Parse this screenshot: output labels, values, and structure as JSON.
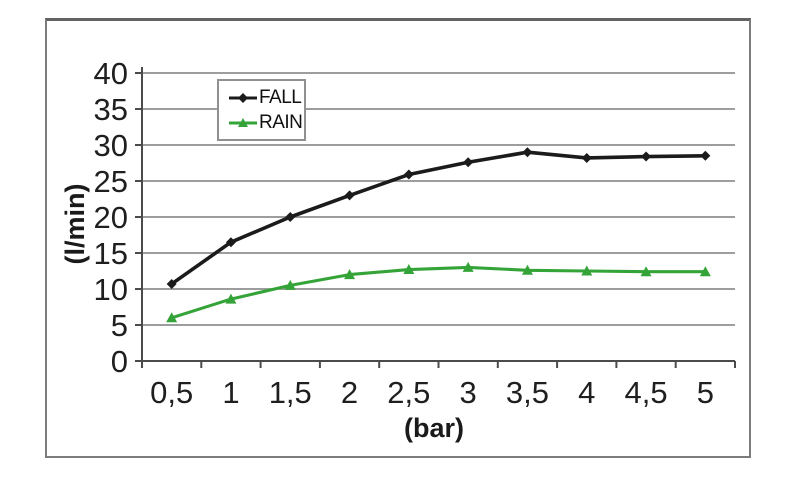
{
  "page": {
    "background": "#ffffff"
  },
  "chart_data": {
    "type": "line",
    "title": "",
    "xlabel": "(bar)",
    "ylabel": "(l/min)",
    "x": [
      0.5,
      1,
      1.5,
      2,
      2.5,
      3,
      3.5,
      4,
      4.5,
      5
    ],
    "x_tick_labels": [
      "0,5",
      "1",
      "1,5",
      "2",
      "2,5",
      "3",
      "3,5",
      "4",
      "4,5",
      "5"
    ],
    "y_ticks": [
      0,
      5,
      10,
      15,
      20,
      25,
      30,
      35,
      40
    ],
    "ylim": [
      0,
      40
    ],
    "grid": "horizontal",
    "legend_position": "inside-top-left",
    "series": [
      {
        "name": "FALL",
        "marker": "diamond",
        "color": "#1b1b1b",
        "values": [
          10.7,
          16.5,
          20.0,
          23.0,
          25.9,
          27.6,
          29.0,
          28.2,
          28.4,
          28.5
        ]
      },
      {
        "name": "RAIN",
        "marker": "triangle",
        "color": "#35a438",
        "values": [
          6.0,
          8.6,
          10.5,
          12.0,
          12.7,
          13.0,
          12.6,
          12.5,
          12.4,
          12.4
        ]
      }
    ],
    "colors": {
      "grid": "#8f8f8f",
      "axis": "#4b4b4b",
      "tick_label": "#1f1f1f",
      "frame_border": "#7c7c7c"
    }
  }
}
